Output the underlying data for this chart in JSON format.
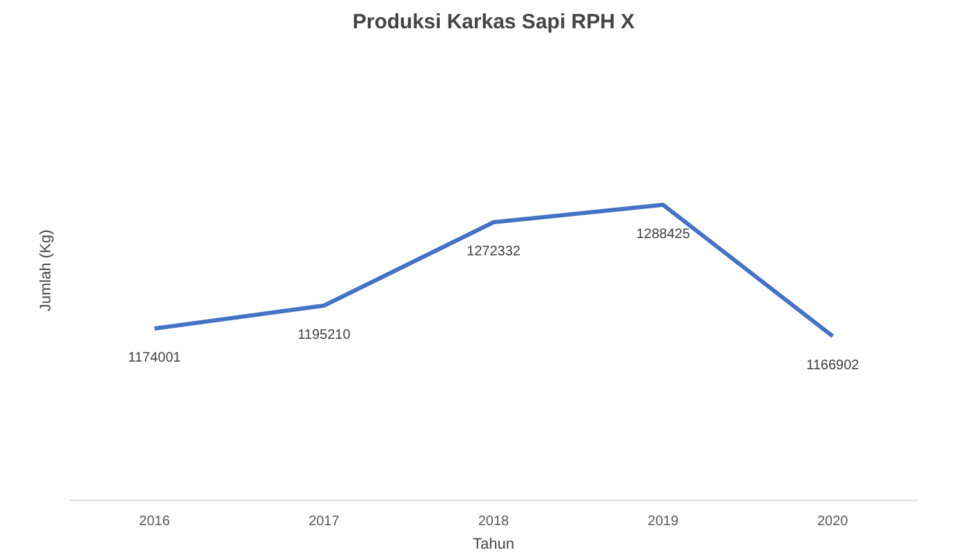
{
  "chart_data": {
    "type": "line",
    "title": "Produksi Karkas Sapi RPH X",
    "xlabel": "Tahun",
    "ylabel": "Jumlah (Kg)",
    "categories": [
      "2016",
      "2017",
      "2018",
      "2019",
      "2020"
    ],
    "series": [
      {
        "color": "#4472c4",
        "values": [
          1174001,
          1195210,
          1272332,
          1288425,
          1166902
        ]
      }
    ],
    "tick_labels": "x",
    "data_labels": true,
    "line_style": "solid"
  }
}
